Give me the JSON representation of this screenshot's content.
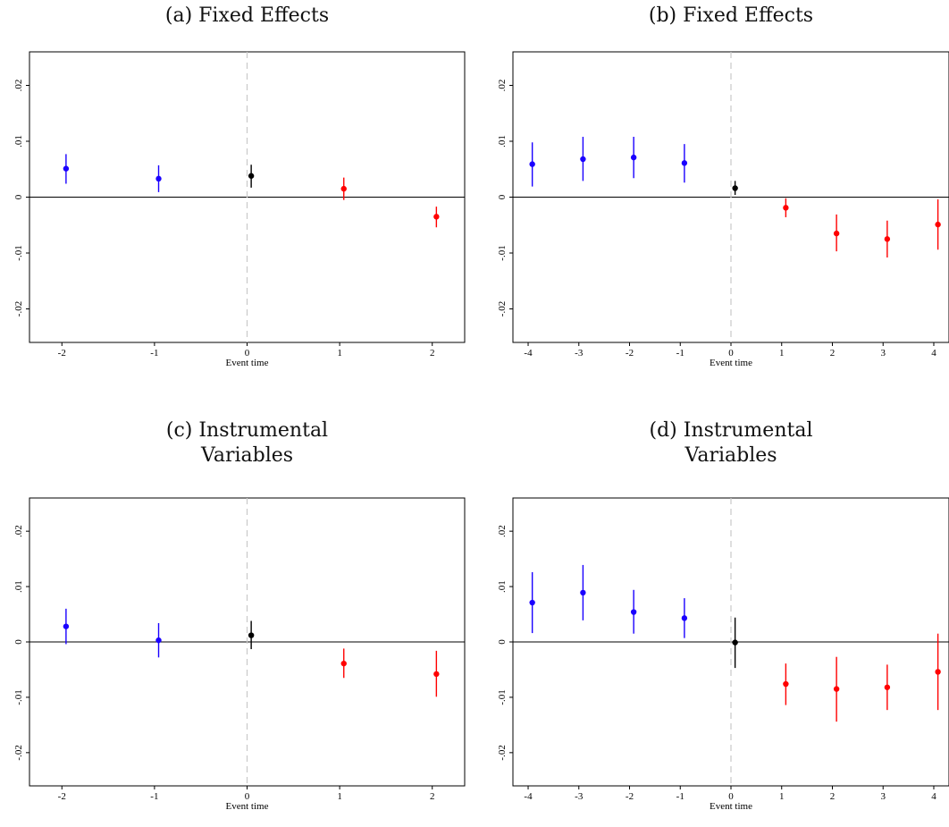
{
  "chart_data": [
    {
      "type": "scatter",
      "title": "(a) Fixed Effects",
      "xlabel": "Event time",
      "ylabel": "",
      "ylim": [
        -0.026,
        0.026
      ],
      "xlim": [
        -2.35,
        2.35
      ],
      "yticks": [
        -0.02,
        -0.01,
        0,
        0.01,
        0.02
      ],
      "ytick_labels": [
        "-.02",
        "-.01",
        "0",
        ".01",
        ".02"
      ],
      "xticks": [
        -2,
        -1,
        0,
        1,
        2
      ],
      "xtick_labels": [
        "-2",
        "-1",
        "0",
        "1",
        "2"
      ],
      "series": [
        {
          "color": "#1a00ff",
          "points": [
            {
              "x": -2,
              "y": 0.0051,
              "lo": 0.0024,
              "hi": 0.0077
            },
            {
              "x": -1,
              "y": 0.0033,
              "lo": 0.0009,
              "hi": 0.0057
            }
          ]
        },
        {
          "color": "#000000",
          "points": [
            {
              "x": 0,
              "y": 0.0038,
              "lo": 0.0017,
              "hi": 0.0058
            }
          ]
        },
        {
          "color": "#ff0000",
          "points": [
            {
              "x": 1,
              "y": 0.0015,
              "lo": -0.0005,
              "hi": 0.0035
            },
            {
              "x": 2,
              "y": -0.0035,
              "lo": -0.0054,
              "hi": -0.0017
            }
          ]
        }
      ]
    },
    {
      "type": "scatter",
      "title": "(b) Fixed Effects",
      "xlabel": "Event time",
      "ylabel": "",
      "ylim": [
        -0.026,
        0.026
      ],
      "xlim": [
        -4.3,
        4.3
      ],
      "yticks": [
        -0.02,
        -0.01,
        0,
        0.01,
        0.02
      ],
      "ytick_labels": [
        "-.02",
        "-.01",
        "0",
        ".01",
        ".02"
      ],
      "xticks": [
        -4,
        -3,
        -2,
        -1,
        0,
        1,
        2,
        3,
        4
      ],
      "xtick_labels": [
        "-4",
        "-3",
        "-2",
        "-1",
        "0",
        "1",
        "2",
        "3",
        "4"
      ],
      "series": [
        {
          "color": "#1a00ff",
          "points": [
            {
              "x": -4,
              "y": 0.0059,
              "lo": 0.0019,
              "hi": 0.0098
            },
            {
              "x": -3,
              "y": 0.0068,
              "lo": 0.0029,
              "hi": 0.0108
            },
            {
              "x": -2,
              "y": 0.0071,
              "lo": 0.0034,
              "hi": 0.0108
            },
            {
              "x": -1,
              "y": 0.0061,
              "lo": 0.0026,
              "hi": 0.0095
            }
          ]
        },
        {
          "color": "#000000",
          "points": [
            {
              "x": 0,
              "y": 0.0016,
              "lo": 0.0004,
              "hi": 0.0029
            }
          ]
        },
        {
          "color": "#ff0000",
          "points": [
            {
              "x": 1,
              "y": -0.0019,
              "lo": -0.0036,
              "hi": -0.0002
            },
            {
              "x": 2,
              "y": -0.0065,
              "lo": -0.0097,
              "hi": -0.0031
            },
            {
              "x": 3,
              "y": -0.0075,
              "lo": -0.0108,
              "hi": -0.0042
            },
            {
              "x": 4,
              "y": -0.0049,
              "lo": -0.0094,
              "hi": -0.0004
            }
          ]
        }
      ]
    },
    {
      "type": "scatter",
      "title": "(c) Instrumental\nVariables",
      "xlabel": "Event time",
      "ylabel": "",
      "ylim": [
        -0.026,
        0.026
      ],
      "xlim": [
        -2.35,
        2.35
      ],
      "yticks": [
        -0.02,
        -0.01,
        0,
        0.01,
        0.02
      ],
      "ytick_labels": [
        "-.02",
        "-.01",
        "0",
        ".01",
        ".02"
      ],
      "xticks": [
        -2,
        -1,
        0,
        1,
        2
      ],
      "xtick_labels": [
        "-2",
        "-1",
        "0",
        "1",
        "2"
      ],
      "series": [
        {
          "color": "#1a00ff",
          "points": [
            {
              "x": -2,
              "y": 0.0028,
              "lo": -0.0004,
              "hi": 0.006
            },
            {
              "x": -1,
              "y": 0.0003,
              "lo": -0.0028,
              "hi": 0.0034
            }
          ]
        },
        {
          "color": "#000000",
          "points": [
            {
              "x": 0,
              "y": 0.0012,
              "lo": -0.0013,
              "hi": 0.0038
            }
          ]
        },
        {
          "color": "#ff0000",
          "points": [
            {
              "x": 1,
              "y": -0.0039,
              "lo": -0.0065,
              "hi": -0.0012
            },
            {
              "x": 2,
              "y": -0.0058,
              "lo": -0.0099,
              "hi": -0.0016
            }
          ]
        }
      ]
    },
    {
      "type": "scatter",
      "title": "(d) Instrumental\nVariables",
      "xlabel": "Event time",
      "ylabel": "",
      "ylim": [
        -0.026,
        0.026
      ],
      "xlim": [
        -4.3,
        4.3
      ],
      "yticks": [
        -0.02,
        -0.01,
        0,
        0.01,
        0.02
      ],
      "ytick_labels": [
        "-.02",
        "-.01",
        "0",
        ".01",
        ".02"
      ],
      "xticks": [
        -4,
        -3,
        -2,
        -1,
        0,
        1,
        2,
        3,
        4
      ],
      "xtick_labels": [
        "-4",
        "-3",
        "-2",
        "-1",
        "0",
        "1",
        "2",
        "3",
        "4"
      ],
      "series": [
        {
          "color": "#1a00ff",
          "points": [
            {
              "x": -4,
              "y": 0.0071,
              "lo": 0.0016,
              "hi": 0.0126
            },
            {
              "x": -3,
              "y": 0.0089,
              "lo": 0.0039,
              "hi": 0.0139
            },
            {
              "x": -2,
              "y": 0.0054,
              "lo": 0.0015,
              "hi": 0.0094
            },
            {
              "x": -1,
              "y": 0.0043,
              "lo": 0.0007,
              "hi": 0.0079
            }
          ]
        },
        {
          "color": "#000000",
          "points": [
            {
              "x": 0,
              "y": -0.0001,
              "lo": -0.0047,
              "hi": 0.0044
            }
          ]
        },
        {
          "color": "#ff0000",
          "points": [
            {
              "x": 1,
              "y": -0.0076,
              "lo": -0.0114,
              "hi": -0.0039
            },
            {
              "x": 2,
              "y": -0.0085,
              "lo": -0.0144,
              "hi": -0.0027
            },
            {
              "x": 3,
              "y": -0.0082,
              "lo": -0.0123,
              "hi": -0.0041
            },
            {
              "x": 4,
              "y": -0.0054,
              "lo": -0.0123,
              "hi": 0.0015
            }
          ]
        }
      ]
    }
  ]
}
